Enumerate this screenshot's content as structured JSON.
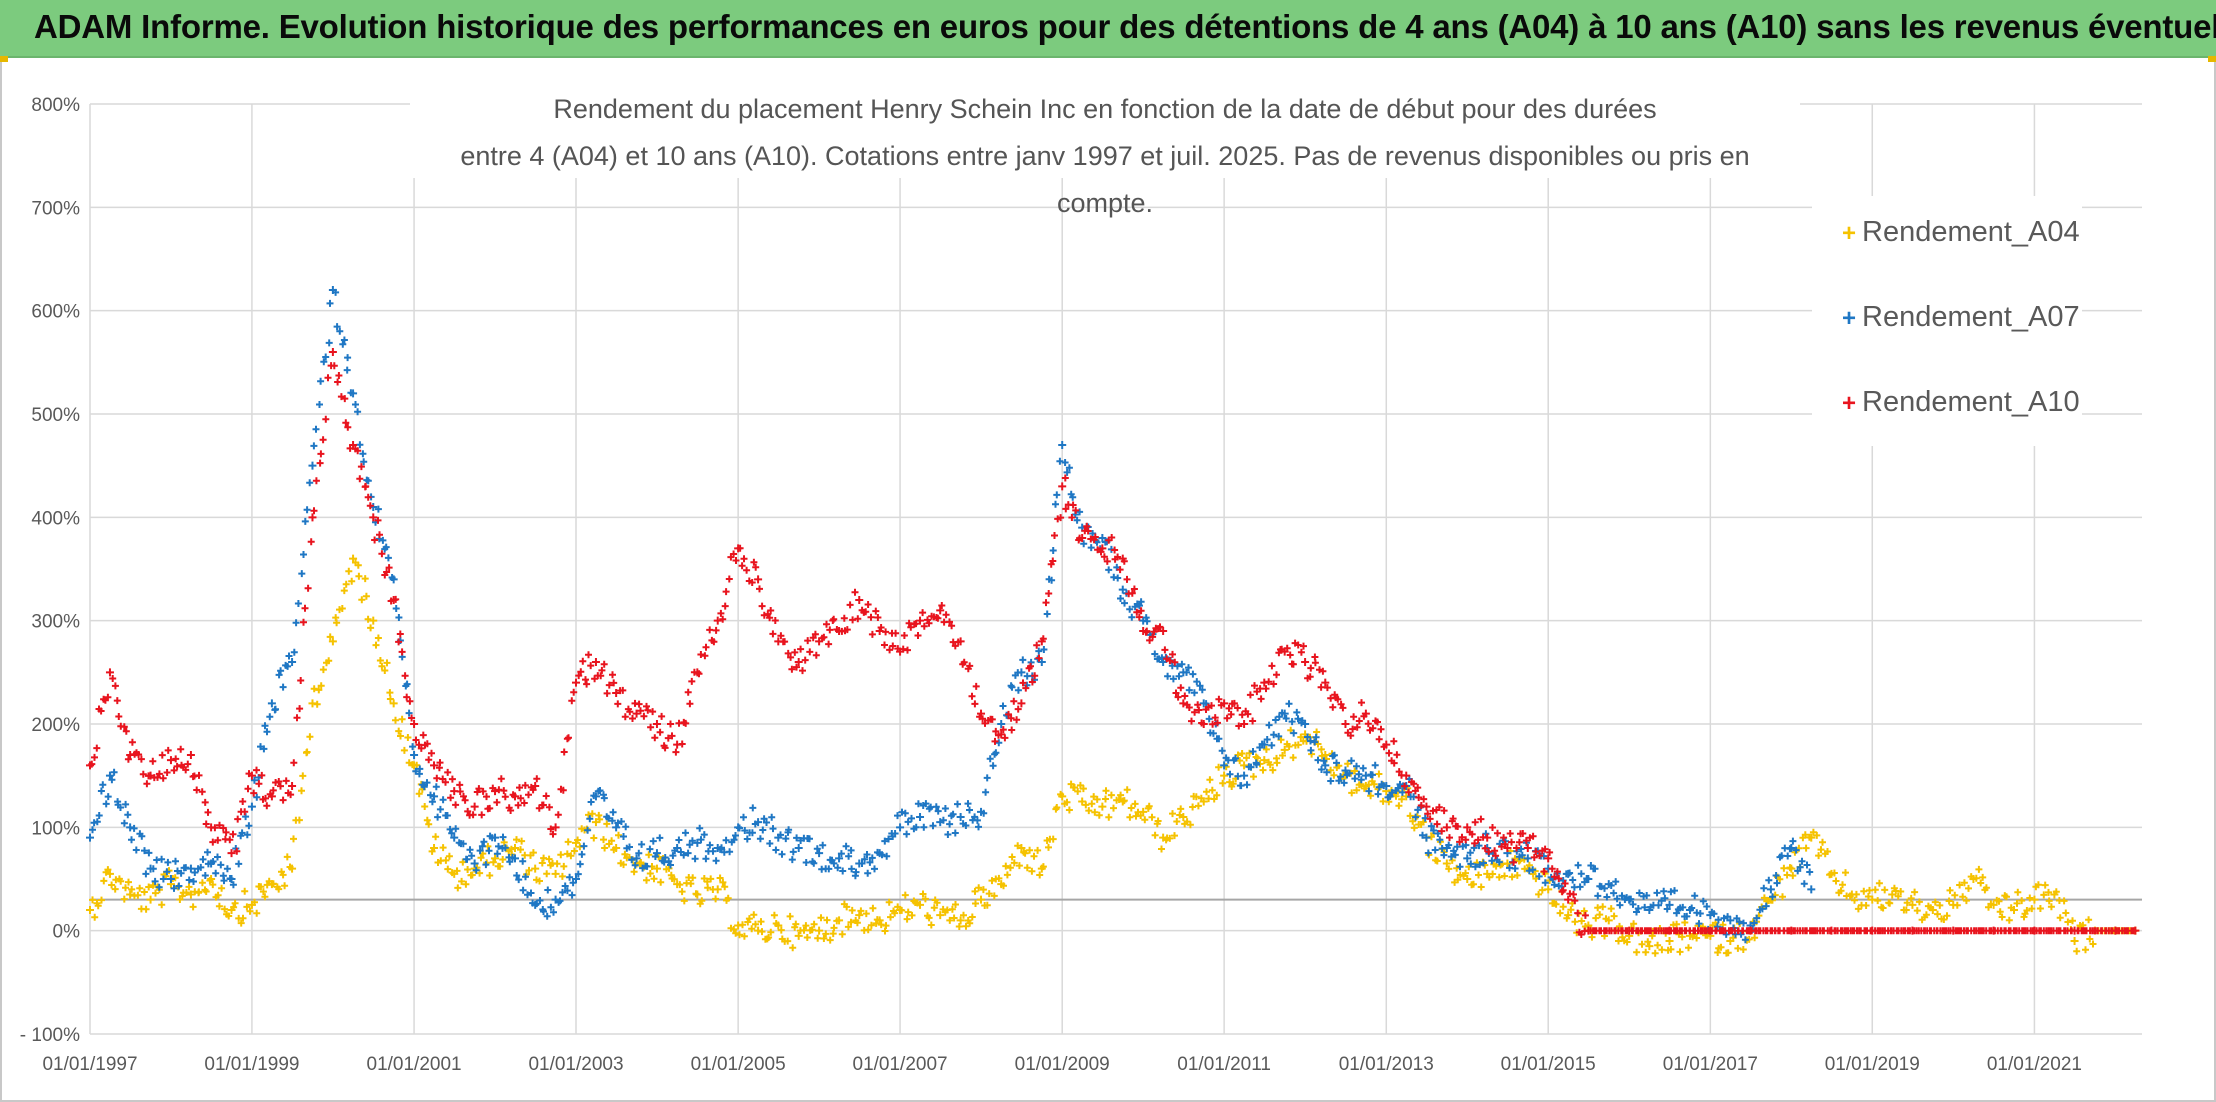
{
  "banner": {
    "text": "ADAM Informe. Evolution historique des performances en euros pour des détentions de 4 ans (A04) à 10 ans (A10) sans les revenus éventuels",
    "background": "#7ccb7e"
  },
  "chart_data": {
    "type": "scatter",
    "title_line1": "Rendement du placement Henry Schein Inc en fonction de la date de début pour des durées",
    "title_line2": "entre 4 (A04) et 10 ans (A10). Cotations entre janv 1997 et juil. 2025. Pas de revenus disponibles ou pris en compte.",
    "xlabel": "",
    "ylabel": "",
    "x_range": [
      "1997-01-01",
      "2022-05-01"
    ],
    "ylim": [
      -100,
      800
    ],
    "y_ticks": [
      "- 100%",
      "0%",
      "100%",
      "200%",
      "300%",
      "400%",
      "500%",
      "600%",
      "700%",
      "800%"
    ],
    "y_tick_values": [
      -100,
      0,
      100,
      200,
      300,
      400,
      500,
      600,
      700,
      800
    ],
    "x_ticks": [
      "01/01/1997",
      "01/01/1999",
      "01/01/2001",
      "01/01/2003",
      "01/01/2005",
      "01/01/2007",
      "01/01/2009",
      "01/01/2011",
      "01/01/2013",
      "01/01/2015",
      "01/01/2017",
      "01/01/2019",
      "01/01/2021"
    ],
    "reference_line": 30,
    "grid": true,
    "legend_position": "top-right",
    "marker": "+",
    "series": [
      {
        "name": "Rendement_A04",
        "color": "#f5c200",
        "points": [
          [
            "1997-01",
            20
          ],
          [
            "1997-04",
            55
          ],
          [
            "1997-07",
            35
          ],
          [
            "1997-10",
            30
          ],
          [
            "1998-01",
            45
          ],
          [
            "1998-04",
            35
          ],
          [
            "1998-07",
            50
          ],
          [
            "1998-10",
            20
          ],
          [
            "1999-01",
            25
          ],
          [
            "1999-04",
            45
          ],
          [
            "1999-07",
            60
          ],
          [
            "1999-10",
            220
          ],
          [
            "2000-01",
            280
          ],
          [
            "2000-04",
            360
          ],
          [
            "2000-07",
            300
          ],
          [
            "2000-10",
            220
          ],
          [
            "2001-01",
            160
          ],
          [
            "2001-04",
            80
          ],
          [
            "2001-07",
            55
          ],
          [
            "2001-10",
            60
          ],
          [
            "2002-01",
            70
          ],
          [
            "2002-04",
            80
          ],
          [
            "2002-07",
            60
          ],
          [
            "2002-10",
            55
          ],
          [
            "2003-01",
            85
          ],
          [
            "2003-04",
            105
          ],
          [
            "2003-07",
            80
          ],
          [
            "2003-10",
            65
          ],
          [
            "2004-01",
            60
          ],
          [
            "2004-04",
            45
          ],
          [
            "2004-07",
            35
          ],
          [
            "2004-10",
            40
          ],
          [
            "2005-01",
            5
          ],
          [
            "2005-04",
            0
          ],
          [
            "2005-07",
            5
          ],
          [
            "2005-10",
            -5
          ],
          [
            "2006-01",
            0
          ],
          [
            "2006-04",
            10
          ],
          [
            "2006-07",
            15
          ],
          [
            "2006-10",
            10
          ],
          [
            "2007-01",
            20
          ],
          [
            "2007-04",
            25
          ],
          [
            "2007-07",
            15
          ],
          [
            "2007-10",
            10
          ],
          [
            "2008-01",
            30
          ],
          [
            "2008-04",
            45
          ],
          [
            "2008-07",
            80
          ],
          [
            "2008-10",
            60
          ],
          [
            "2009-01",
            130
          ],
          [
            "2009-04",
            125
          ],
          [
            "2009-07",
            120
          ],
          [
            "2009-10",
            125
          ],
          [
            "2010-01",
            115
          ],
          [
            "2010-04",
            90
          ],
          [
            "2010-07",
            110
          ],
          [
            "2010-10",
            125
          ],
          [
            "2011-01",
            150
          ],
          [
            "2011-04",
            160
          ],
          [
            "2011-07",
            165
          ],
          [
            "2011-10",
            175
          ],
          [
            "2012-01",
            190
          ],
          [
            "2012-04",
            170
          ],
          [
            "2012-07",
            150
          ],
          [
            "2012-10",
            140
          ],
          [
            "2013-01",
            135
          ],
          [
            "2013-04",
            130
          ],
          [
            "2013-07",
            90
          ],
          [
            "2013-10",
            65
          ],
          [
            "2014-01",
            50
          ],
          [
            "2014-04",
            55
          ],
          [
            "2014-07",
            65
          ],
          [
            "2014-10",
            60
          ],
          [
            "2015-01",
            40
          ],
          [
            "2015-04",
            15
          ],
          [
            "2015-07",
            5
          ],
          [
            "2015-10",
            10
          ],
          [
            "2016-01",
            -5
          ],
          [
            "2016-04",
            -15
          ],
          [
            "2016-07",
            -10
          ],
          [
            "2016-10",
            -5
          ],
          [
            "2017-01",
            -5
          ],
          [
            "2017-04",
            -10
          ],
          [
            "2017-07",
            0
          ],
          [
            "2017-10",
            30
          ],
          [
            "2018-01",
            60
          ],
          [
            "2018-04",
            90
          ],
          [
            "2018-07",
            55
          ],
          [
            "2018-10",
            35
          ],
          [
            "2019-01",
            30
          ],
          [
            "2019-04",
            35
          ],
          [
            "2019-07",
            25
          ],
          [
            "2019-10",
            20
          ],
          [
            "2020-01",
            25
          ],
          [
            "2020-04",
            50
          ],
          [
            "2020-07",
            25
          ],
          [
            "2020-10",
            20
          ],
          [
            "2021-01",
            30
          ],
          [
            "2021-04",
            35
          ],
          [
            "2021-07",
            -10
          ],
          [
            "2021-10",
            0
          ],
          [
            "2022-01",
            0
          ],
          [
            "2022-04",
            0
          ]
        ]
      },
      {
        "name": "Rendement_A07",
        "color": "#1f77c4",
        "points": [
          [
            "1997-01",
            90
          ],
          [
            "1997-04",
            150
          ],
          [
            "1997-07",
            100
          ],
          [
            "1997-10",
            60
          ],
          [
            "1998-01",
            50
          ],
          [
            "1998-04",
            60
          ],
          [
            "1998-07",
            65
          ],
          [
            "1998-10",
            50
          ],
          [
            "1999-01",
            120
          ],
          [
            "1999-04",
            220
          ],
          [
            "1999-07",
            260
          ],
          [
            "1999-10",
            450
          ],
          [
            "2000-01",
            620
          ],
          [
            "2000-04",
            520
          ],
          [
            "2000-07",
            410
          ],
          [
            "2000-10",
            340
          ],
          [
            "2001-01",
            170
          ],
          [
            "2001-04",
            130
          ],
          [
            "2001-07",
            90
          ],
          [
            "2001-10",
            65
          ],
          [
            "2002-01",
            90
          ],
          [
            "2002-04",
            70
          ],
          [
            "2002-07",
            25
          ],
          [
            "2002-10",
            30
          ],
          [
            "2003-01",
            50
          ],
          [
            "2003-04",
            130
          ],
          [
            "2003-07",
            100
          ],
          [
            "2003-10",
            70
          ],
          [
            "2004-01",
            75
          ],
          [
            "2004-04",
            80
          ],
          [
            "2004-07",
            85
          ],
          [
            "2004-10",
            80
          ],
          [
            "2005-01",
            100
          ],
          [
            "2005-04",
            105
          ],
          [
            "2005-07",
            90
          ],
          [
            "2005-10",
            80
          ],
          [
            "2006-01",
            75
          ],
          [
            "2006-04",
            70
          ],
          [
            "2006-07",
            65
          ],
          [
            "2006-10",
            75
          ],
          [
            "2007-01",
            100
          ],
          [
            "2007-04",
            110
          ],
          [
            "2007-07",
            105
          ],
          [
            "2007-10",
            110
          ],
          [
            "2008-01",
            115
          ],
          [
            "2008-04",
            200
          ],
          [
            "2008-07",
            250
          ],
          [
            "2008-10",
            260
          ],
          [
            "2009-01",
            470
          ],
          [
            "2009-04",
            390
          ],
          [
            "2009-07",
            380
          ],
          [
            "2009-10",
            330
          ],
          [
            "2010-01",
            300
          ],
          [
            "2010-04",
            260
          ],
          [
            "2010-07",
            250
          ],
          [
            "2010-10",
            220
          ],
          [
            "2011-01",
            160
          ],
          [
            "2011-04",
            150
          ],
          [
            "2011-07",
            180
          ],
          [
            "2011-10",
            210
          ],
          [
            "2012-01",
            200
          ],
          [
            "2012-04",
            160
          ],
          [
            "2012-07",
            155
          ],
          [
            "2012-10",
            150
          ],
          [
            "2013-01",
            140
          ],
          [
            "2013-04",
            140
          ],
          [
            "2013-07",
            90
          ],
          [
            "2013-10",
            80
          ],
          [
            "2014-01",
            70
          ],
          [
            "2014-04",
            80
          ],
          [
            "2014-07",
            75
          ],
          [
            "2014-10",
            70
          ],
          [
            "2015-01",
            60
          ],
          [
            "2015-04",
            55
          ],
          [
            "2015-07",
            50
          ],
          [
            "2015-10",
            45
          ],
          [
            "2016-01",
            30
          ],
          [
            "2016-04",
            20
          ],
          [
            "2016-07",
            25
          ],
          [
            "2016-10",
            20
          ],
          [
            "2017-01",
            15
          ],
          [
            "2017-04",
            10
          ],
          [
            "2017-07",
            5
          ],
          [
            "2017-10",
            40
          ],
          [
            "2018-01",
            80
          ],
          [
            "2018-04",
            40
          ]
        ]
      },
      {
        "name": "Rendement_A10",
        "color": "#e8141e",
        "points": [
          [
            "1997-01",
            160
          ],
          [
            "1997-04",
            250
          ],
          [
            "1997-07",
            170
          ],
          [
            "1997-10",
            150
          ],
          [
            "1998-01",
            165
          ],
          [
            "1998-04",
            170
          ],
          [
            "1998-07",
            100
          ],
          [
            "1998-10",
            75
          ],
          [
            "1999-01",
            150
          ],
          [
            "1999-04",
            130
          ],
          [
            "1999-07",
            140
          ],
          [
            "1999-10",
            400
          ],
          [
            "2000-01",
            560
          ],
          [
            "2000-04",
            470
          ],
          [
            "2000-07",
            400
          ],
          [
            "2000-10",
            320
          ],
          [
            "2001-01",
            200
          ],
          [
            "2001-04",
            160
          ],
          [
            "2001-07",
            135
          ],
          [
            "2001-10",
            120
          ],
          [
            "2002-01",
            135
          ],
          [
            "2002-04",
            130
          ],
          [
            "2002-07",
            140
          ],
          [
            "2002-10",
            100
          ],
          [
            "2003-01",
            240
          ],
          [
            "2003-04",
            260
          ],
          [
            "2003-07",
            230
          ],
          [
            "2003-10",
            210
          ],
          [
            "2004-01",
            200
          ],
          [
            "2004-04",
            180
          ],
          [
            "2004-07",
            250
          ],
          [
            "2004-10",
            300
          ],
          [
            "2005-01",
            370
          ],
          [
            "2005-04",
            340
          ],
          [
            "2005-07",
            280
          ],
          [
            "2005-10",
            260
          ],
          [
            "2006-01",
            280
          ],
          [
            "2006-04",
            290
          ],
          [
            "2006-07",
            320
          ],
          [
            "2006-10",
            290
          ],
          [
            "2007-01",
            270
          ],
          [
            "2007-04",
            300
          ],
          [
            "2007-07",
            310
          ],
          [
            "2007-10",
            280
          ],
          [
            "2008-01",
            210
          ],
          [
            "2008-04",
            190
          ],
          [
            "2008-07",
            220
          ],
          [
            "2008-10",
            280
          ],
          [
            "2009-01",
            430
          ],
          [
            "2009-04",
            380
          ],
          [
            "2009-07",
            370
          ],
          [
            "2009-10",
            360
          ],
          [
            "2010-01",
            290
          ],
          [
            "2010-04",
            290
          ],
          [
            "2010-07",
            220
          ],
          [
            "2010-10",
            200
          ],
          [
            "2011-01",
            220
          ],
          [
            "2011-04",
            200
          ],
          [
            "2011-07",
            240
          ],
          [
            "2011-10",
            270
          ],
          [
            "2012-01",
            260
          ],
          [
            "2012-04",
            240
          ],
          [
            "2012-07",
            200
          ],
          [
            "2012-10",
            210
          ],
          [
            "2013-01",
            180
          ],
          [
            "2013-04",
            150
          ],
          [
            "2013-07",
            120
          ],
          [
            "2013-10",
            100
          ],
          [
            "2014-01",
            100
          ],
          [
            "2014-04",
            90
          ],
          [
            "2014-07",
            80
          ],
          [
            "2014-10",
            80
          ],
          [
            "2015-01",
            70
          ],
          [
            "2015-04",
            30
          ],
          [
            "2015-07",
            0
          ],
          [
            "2016-01",
            0
          ],
          [
            "2016-07",
            0
          ],
          [
            "2017-01",
            0
          ],
          [
            "2017-07",
            0
          ],
          [
            "2018-01",
            0
          ],
          [
            "2018-07",
            0
          ],
          [
            "2019-01",
            0
          ],
          [
            "2019-07",
            0
          ],
          [
            "2020-01",
            0
          ],
          [
            "2020-07",
            0
          ],
          [
            "2021-01",
            0
          ],
          [
            "2021-07",
            0
          ],
          [
            "2022-01",
            0
          ],
          [
            "2022-04",
            0
          ]
        ]
      }
    ]
  }
}
